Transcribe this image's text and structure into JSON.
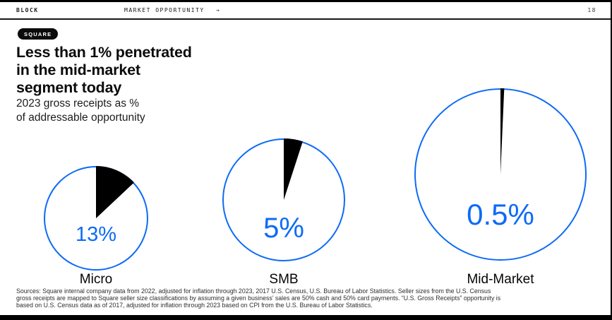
{
  "header": {
    "brand": "BLOCK",
    "section": "MARKET OPPORTUNITY",
    "arrow": "→",
    "page_number": "18"
  },
  "badge": "SQUARE",
  "title_lines": [
    "Less than 1% penetrated",
    "in the mid-market",
    "segment today"
  ],
  "subtitle_lines": [
    "2023 gross receipts as %",
    "of addressable opportunity"
  ],
  "chart_data": {
    "type": "pie",
    "title": "2023 gross receipts as % of addressable opportunity",
    "circle_color": "#0d6bf5",
    "wedge_color": "#000000",
    "charts": [
      {
        "category": "Micro",
        "value": 13,
        "value_label": "13%"
      },
      {
        "category": "SMB",
        "value": 5,
        "value_label": "5%"
      },
      {
        "category": "Mid-Market",
        "value": 0.5,
        "value_label": "0.5%"
      }
    ]
  },
  "footnote_lines": [
    "Sources: Square internal company data from 2022, adjusted for inflation through 2023, 2017 U.S. Census, U.S. Bureau of Labor Statistics. Seller sizes from the U.S. Census",
    "gross receipts are mapped to Square seller size classifications by assuming a given business’ sales are 50% cash and 50% card payments. “U.S. Gross Receipts” opportunity is",
    "based on U.S. Census data as of 2017, adjusted for inflation through 2023 based on CPI from the U.S. Bureau of Labor Statistics."
  ]
}
